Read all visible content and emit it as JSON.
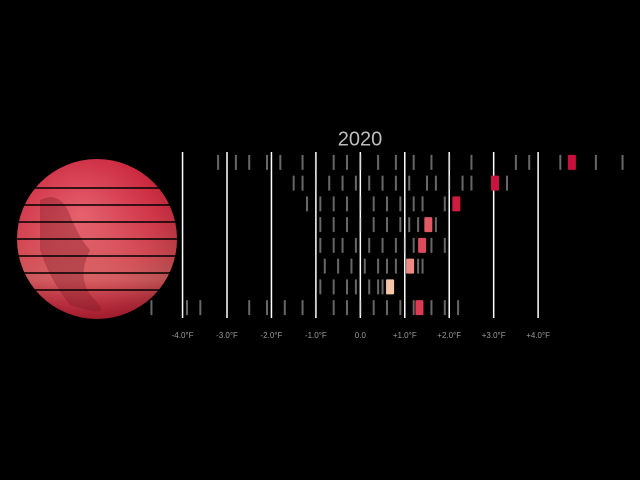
{
  "chart_data": {
    "type": "strip",
    "title": "2020",
    "xlim": [
      -4.8,
      6.0
    ],
    "xticks": [
      {
        "value": -4,
        "label": "-4.0°F"
      },
      {
        "value": -3,
        "label": "-3.0°F"
      },
      {
        "value": -2,
        "label": "-2.0°F"
      },
      {
        "value": -1,
        "label": "-1.0°F"
      },
      {
        "value": 0,
        "label": "0.0"
      },
      {
        "value": 1,
        "label": "+1.0°F"
      },
      {
        "value": 2,
        "label": "+2.0°F"
      },
      {
        "value": 3,
        "label": "+3.0°F"
      },
      {
        "value": 4,
        "label": "+4.0°F"
      }
    ],
    "grid": true,
    "series": [
      {
        "values": [
          -3.2,
          -2.8,
          -2.5,
          -2.1,
          -1.8,
          -1.3,
          -1.0,
          -0.6,
          -0.3,
          0,
          0.4,
          0.8,
          1.2,
          1.6,
          2.0,
          2.5,
          3.5,
          3.8,
          4.5,
          5.3,
          5.9
        ],
        "highlight": 4.76,
        "color": "#c8103c"
      },
      {
        "values": [
          -1.5,
          -1.3,
          -1.0,
          -0.7,
          -0.4,
          -0.1,
          0.2,
          0.5,
          0.8,
          1.1,
          1.5,
          1.7,
          2.0,
          2.3,
          2.5,
          3.3
        ],
        "highlight": 3.03,
        "color": "#c8143e"
      },
      {
        "values": [
          -1.2,
          -0.9,
          -0.6,
          -0.3,
          0,
          0.3,
          0.6,
          0.9,
          1.2,
          1.4,
          1.9
        ],
        "highlight": 2.16,
        "color": "#cc1c40"
      },
      {
        "values": [
          -0.9,
          -0.6,
          -0.3,
          0,
          0.3,
          0.6,
          0.9,
          1.1,
          1.3,
          1.7
        ],
        "highlight": 1.53,
        "color": "#e05a66"
      },
      {
        "values": [
          -0.9,
          -0.6,
          -0.4,
          -0.1,
          0.2,
          0.5,
          0.8,
          1.0,
          1.2,
          1.6,
          1.9
        ],
        "highlight": 1.39,
        "color": "#dc4a5c"
      },
      {
        "values": [
          -0.8,
          -0.5,
          -0.2,
          0.1,
          0.4,
          0.6,
          0.8,
          1.3,
          1.4
        ],
        "highlight": 1.12,
        "color": "#ee8a84"
      },
      {
        "values": [
          -0.9,
          -0.6,
          -0.3,
          -0.1,
          0.2,
          0.4,
          0.5,
          0.6
        ],
        "highlight": 0.67,
        "color": "#f6c4a6"
      },
      {
        "values": [
          -4.7,
          -3.9,
          -3.6,
          -2.5,
          -2.1,
          -1.7,
          -1.3,
          -1.0,
          -0.6,
          -0.3,
          0,
          0.3,
          0.6,
          0.9,
          1.2,
          1.6,
          1.9,
          2.2
        ],
        "highlight": 1.33,
        "color": "#dc3a52"
      }
    ]
  }
}
